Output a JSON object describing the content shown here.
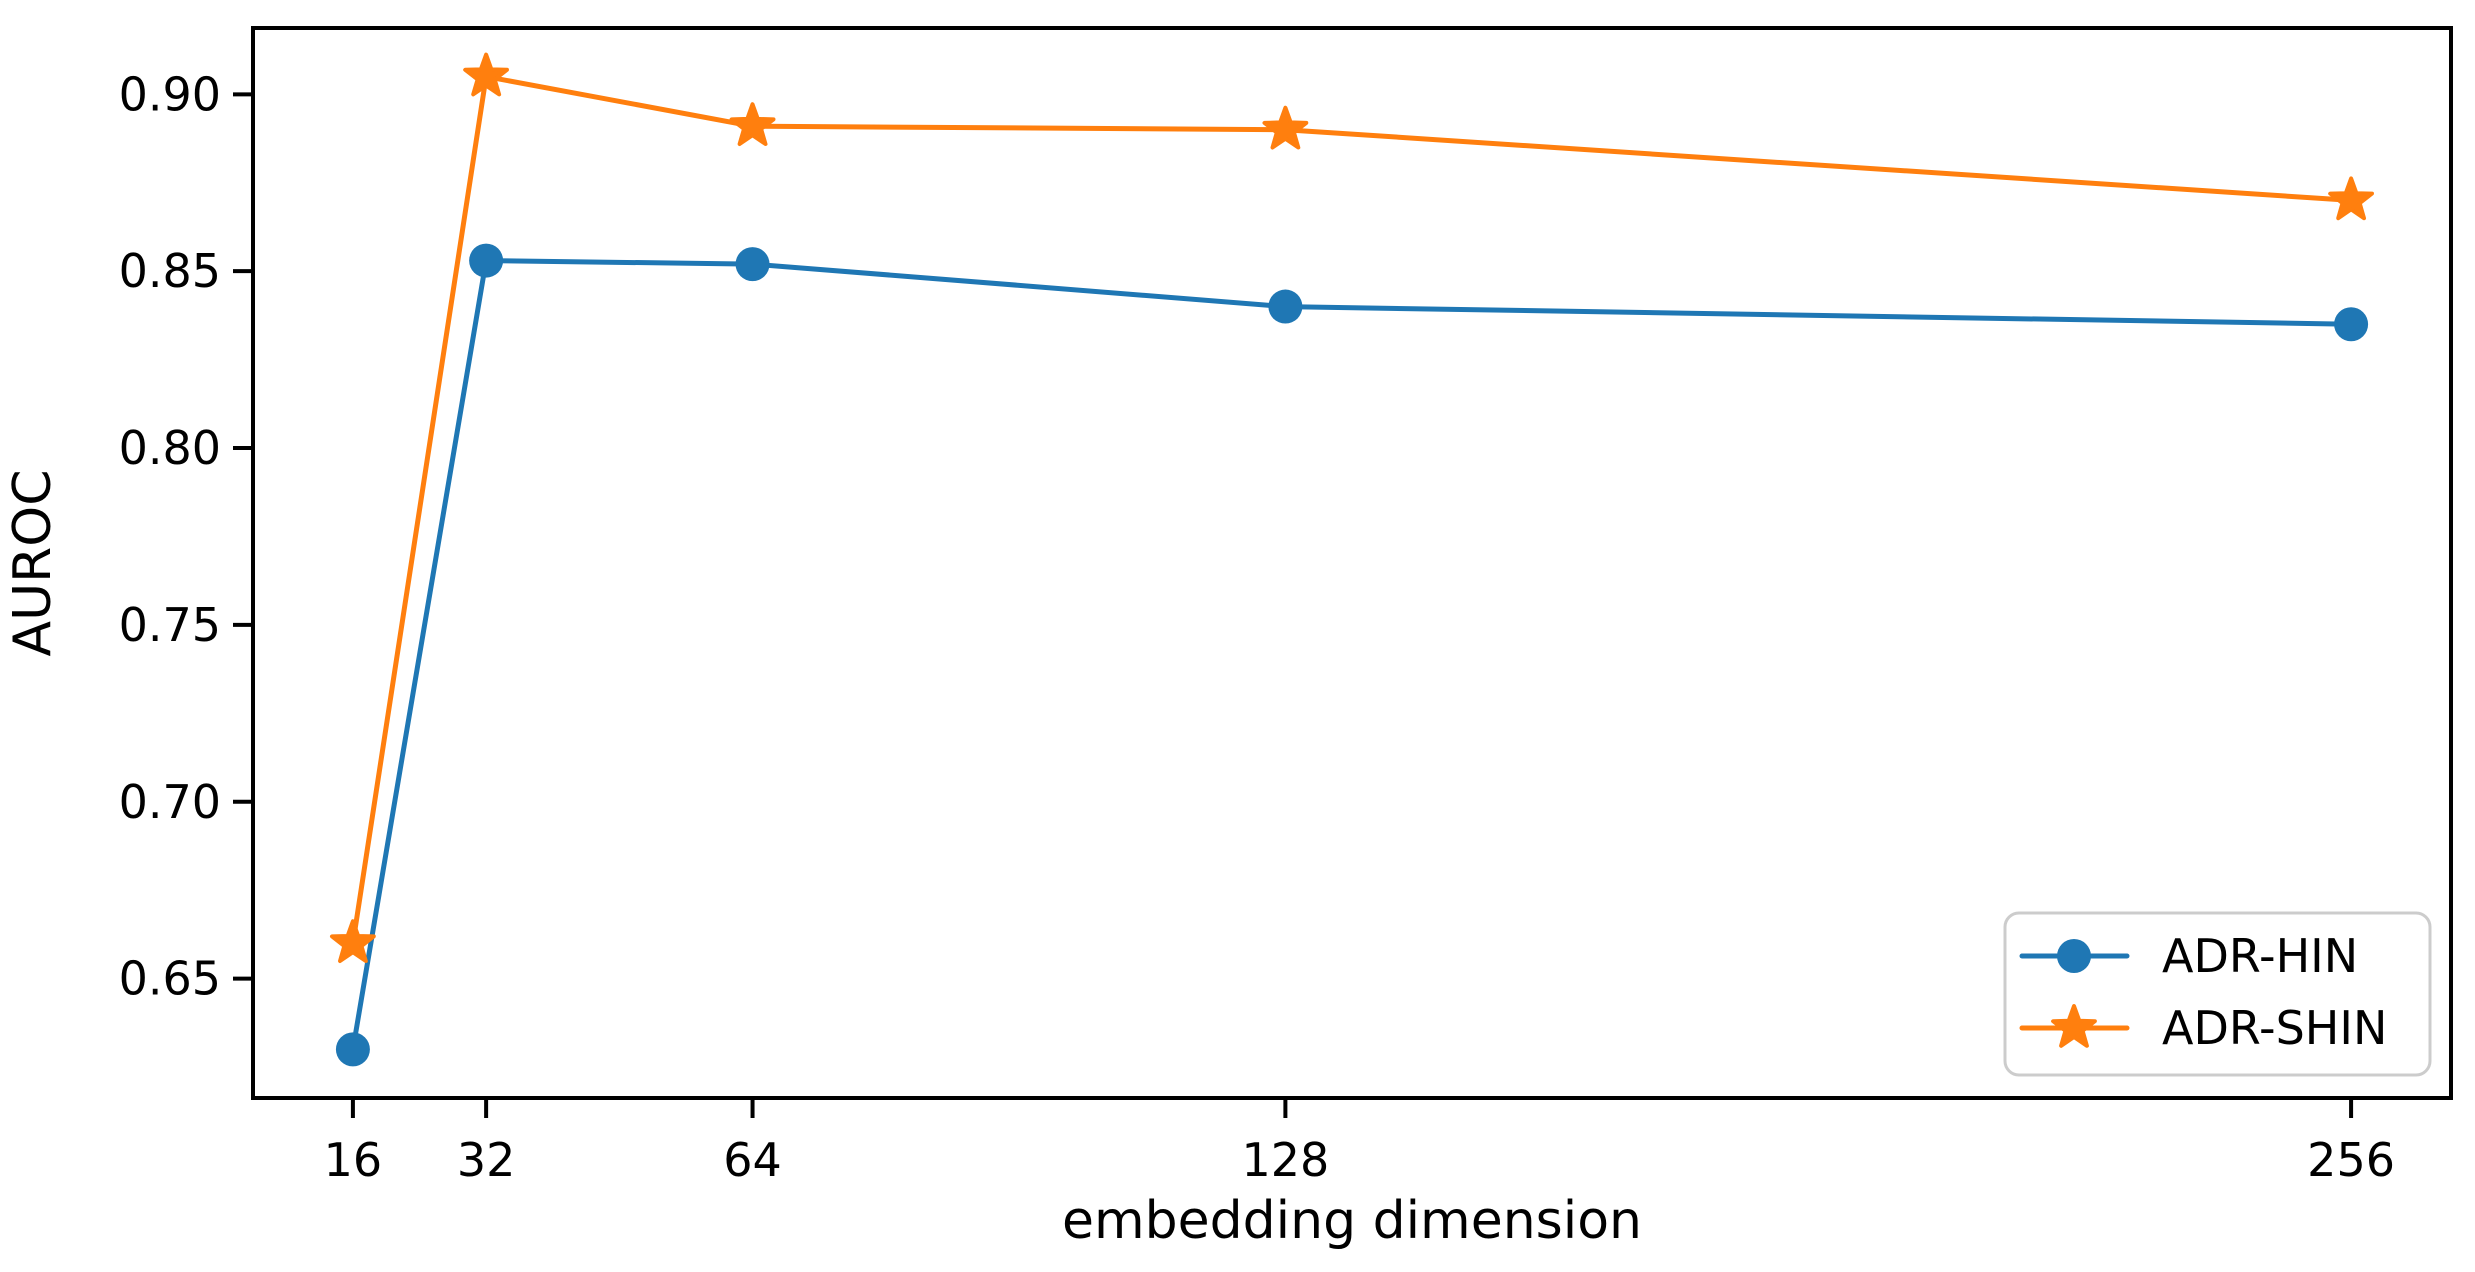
{
  "chart_data": {
    "type": "line",
    "title": "",
    "xlabel": "embedding dimension",
    "ylabel": "AUROC",
    "x": [
      16,
      32,
      64,
      128,
      256
    ],
    "x_tick_labels": [
      "16",
      "32",
      "64",
      "128",
      "256"
    ],
    "y_ticks": [
      0.65,
      0.7,
      0.75,
      0.8,
      0.85,
      0.9
    ],
    "y_tick_labels": [
      "0.65",
      "0.70",
      "0.75",
      "0.80",
      "0.85",
      "0.90"
    ],
    "xlim": [
      4,
      268
    ],
    "ylim": [
      0.61625,
      0.91875
    ],
    "x_scale": "linear",
    "grid": false,
    "legend_position": "lower right",
    "series": [
      {
        "name": "ADR-HIN",
        "marker": "circle",
        "color": "#1f77b4",
        "values": [
          0.63,
          0.853,
          0.852,
          0.84,
          0.835
        ]
      },
      {
        "name": "ADR-SHIN",
        "marker": "star",
        "color": "#ff7f0e",
        "values": [
          0.66,
          0.905,
          0.891,
          0.89,
          0.87
        ]
      }
    ],
    "colors": {
      "background": "#ffffff",
      "spine": "#000000",
      "tick": "#000000",
      "legend_edge": "#cccccc",
      "legend_fill": "#ffffff"
    }
  }
}
